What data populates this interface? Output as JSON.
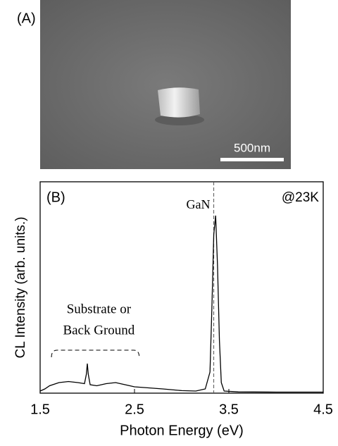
{
  "panel_a": {
    "label": "(A)",
    "scale_bar": "500nm"
  },
  "chart_data": {
    "type": "line",
    "panel_label": "(B)",
    "annotation": "@23K",
    "x_label": "Photon Energy (eV)",
    "y_label": "CL Intensity (arb. units.)",
    "reference_line": {
      "x": 3.34,
      "label": "GaN"
    },
    "region": {
      "range": [
        1.62,
        2.55
      ],
      "label": [
        "Substrate or",
        "Back Ground"
      ]
    },
    "xlim": [
      1.5,
      4.5
    ],
    "xticks": [
      1.5,
      2.5,
      3.5,
      4.5
    ],
    "ylim": [
      0,
      1
    ],
    "series": [
      {
        "color": "#000000",
        "x": [
          1.5,
          1.55,
          1.6,
          1.7,
          1.8,
          1.9,
          1.97,
          1.99,
          2.0,
          2.01,
          2.03,
          2.1,
          2.2,
          2.3,
          2.4,
          2.5,
          2.65,
          2.8,
          3.0,
          3.15,
          3.25,
          3.3,
          3.32,
          3.34,
          3.36,
          3.38,
          3.4,
          3.42,
          3.45,
          3.6,
          4.0,
          4.5
        ],
        "values": [
          0.01,
          0.02,
          0.035,
          0.05,
          0.055,
          0.05,
          0.045,
          0.09,
          0.14,
          0.09,
          0.04,
          0.035,
          0.045,
          0.05,
          0.04,
          0.03,
          0.025,
          0.02,
          0.012,
          0.01,
          0.02,
          0.1,
          0.4,
          0.75,
          0.84,
          0.6,
          0.25,
          0.05,
          0.01,
          0.006,
          0.005,
          0.005
        ]
      }
    ]
  }
}
